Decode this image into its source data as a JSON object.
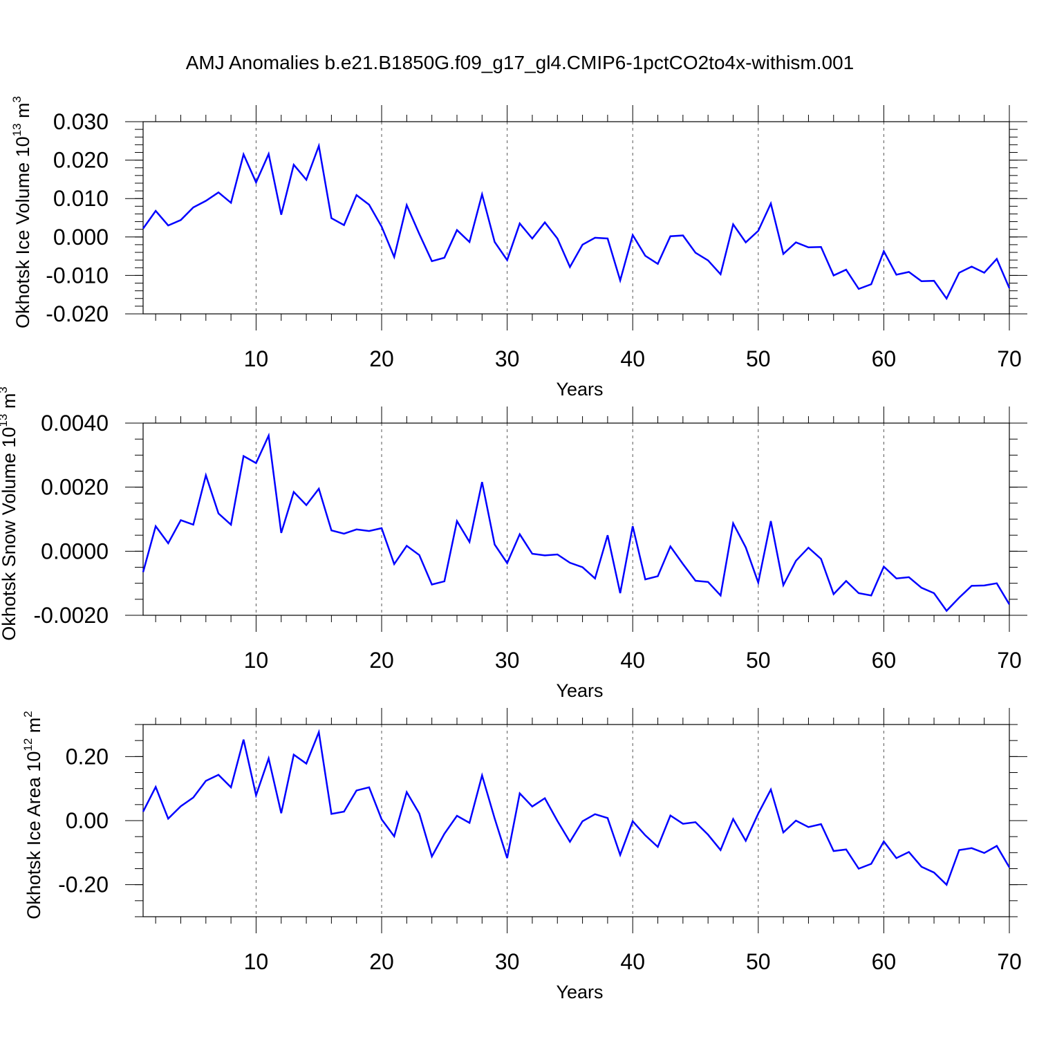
{
  "title": "AMJ Anomalies b.e21.B1850G.f09_g17_gl4.CMIP6-1pctCO2to4x-withism.001",
  "colors": {
    "series": "#0000ff",
    "axis": "#000000",
    "grid": "#555555"
  },
  "chart_data": [
    {
      "type": "line",
      "name": "Okhotsk Ice Volume",
      "ylabel": {
        "text": "Okhotsk Ice Volume 10",
        "exp": "13",
        "unit": " m",
        "unit_exp": "3"
      },
      "xlabel": "Years",
      "xlim": [
        1,
        70
      ],
      "ylim": [
        -0.02,
        0.03
      ],
      "xticks": [
        10,
        20,
        30,
        40,
        50,
        60,
        70
      ],
      "xtick_labels": [
        "10",
        "20",
        "30",
        "40",
        "50",
        "60",
        "70"
      ],
      "yticks": [
        -0.02,
        -0.01,
        0.0,
        0.01,
        0.02,
        0.03
      ],
      "ytick_labels": [
        "-0.020",
        "-0.010",
        "0.000",
        "0.010",
        "0.020",
        "0.030"
      ],
      "ymin_step": 0.002,
      "grid": "vertical dashed at x ticks",
      "x": [
        1,
        2,
        3,
        4,
        5,
        6,
        7,
        8,
        9,
        10,
        11,
        12,
        13,
        14,
        15,
        16,
        17,
        18,
        19,
        20,
        21,
        22,
        23,
        24,
        25,
        26,
        27,
        28,
        29,
        30,
        31,
        32,
        33,
        34,
        35,
        36,
        37,
        38,
        39,
        40,
        41,
        42,
        43,
        44,
        45,
        46,
        47,
        48,
        49,
        50,
        51,
        52,
        53,
        54,
        55,
        56,
        57,
        58,
        59,
        60,
        61,
        62,
        63,
        64,
        65,
        66,
        67,
        68,
        69,
        70
      ],
      "values": [
        0.0022,
        0.0068,
        0.003,
        0.0044,
        0.0077,
        0.0094,
        0.0116,
        0.0089,
        0.0215,
        0.0142,
        0.0216,
        0.0058,
        0.0188,
        0.0149,
        0.0237,
        0.0049,
        0.0031,
        0.0109,
        0.0084,
        0.0027,
        -0.0052,
        0.0083,
        0.0008,
        -0.0063,
        -0.0054,
        0.0018,
        -0.0013,
        0.0111,
        -0.0013,
        -0.006,
        0.0035,
        -0.0004,
        0.0038,
        -0.0004,
        -0.0078,
        -0.002,
        -0.0002,
        -0.0004,
        -0.0113,
        0.0005,
        -0.0049,
        -0.007,
        0.0002,
        0.0004,
        -0.0041,
        -0.0061,
        -0.0097,
        0.0033,
        -0.0014,
        0.0016,
        0.0087,
        -0.0044,
        -0.0014,
        -0.0027,
        -0.0026,
        -0.01,
        -0.0085,
        -0.0135,
        -0.0123,
        -0.0037,
        -0.0098,
        -0.0091,
        -0.0115,
        -0.0114,
        -0.016,
        -0.0093,
        -0.0077,
        -0.0093,
        -0.0057,
        -0.0133
      ]
    },
    {
      "type": "line",
      "name": "Okhotsk Snow Volume",
      "ylabel": {
        "text": "Okhotsk Snow Volume 10",
        "exp": "13",
        "unit": " m",
        "unit_exp": "3"
      },
      "xlabel": "Years",
      "xlim": [
        1,
        70
      ],
      "ylim": [
        -0.002,
        0.004
      ],
      "xticks": [
        10,
        20,
        30,
        40,
        50,
        60,
        70
      ],
      "xtick_labels": [
        "10",
        "20",
        "30",
        "40",
        "50",
        "60",
        "70"
      ],
      "yticks": [
        -0.002,
        0.0,
        0.002,
        0.004
      ],
      "ytick_labels": [
        "-0.0020",
        "0.0000",
        "0.0020",
        "0.0040"
      ],
      "ymin_step": 0.0005,
      "grid": "vertical dashed at x ticks",
      "x": [
        1,
        2,
        3,
        4,
        5,
        6,
        7,
        8,
        9,
        10,
        11,
        12,
        13,
        14,
        15,
        16,
        17,
        18,
        19,
        20,
        21,
        22,
        23,
        24,
        25,
        26,
        27,
        28,
        29,
        30,
        31,
        32,
        33,
        34,
        35,
        36,
        37,
        38,
        39,
        40,
        41,
        42,
        43,
        44,
        45,
        46,
        47,
        48,
        49,
        50,
        51,
        52,
        53,
        54,
        55,
        56,
        57,
        58,
        59,
        60,
        61,
        62,
        63,
        64,
        65,
        66,
        67,
        68,
        69,
        70
      ],
      "values": [
        -0.00065,
        0.00078,
        0.00025,
        0.00097,
        0.00083,
        0.00237,
        0.00118,
        0.00083,
        0.00297,
        0.00275,
        0.00361,
        0.00057,
        0.00185,
        0.00144,
        0.00195,
        0.00065,
        0.00055,
        0.00068,
        0.00063,
        0.00072,
        -0.0004,
        0.00017,
        -0.00012,
        -0.00104,
        -0.00094,
        0.00094,
        0.00029,
        0.00216,
        0.00021,
        -0.00037,
        0.00053,
        -8e-05,
        -0.00013,
        -0.0001,
        -0.00036,
        -0.0005,
        -0.00085,
        0.0005,
        -0.00131,
        0.00078,
        -0.00088,
        -0.00078,
        0.00015,
        -0.0004,
        -0.00092,
        -0.00096,
        -0.00138,
        0.00087,
        0.00012,
        -0.00098,
        0.00094,
        -0.00106,
        -0.0003,
        0.00011,
        -0.00024,
        -0.00134,
        -0.00093,
        -0.00131,
        -0.00138,
        -0.00048,
        -0.00085,
        -0.00081,
        -0.00114,
        -0.00131,
        -0.00186,
        -0.00145,
        -0.00108,
        -0.00107,
        -0.001,
        -0.00166
      ]
    },
    {
      "type": "line",
      "name": "Okhotsk Ice Area",
      "ylabel": {
        "text": "Okhotsk Ice Area 10",
        "exp": "12",
        "unit": " m",
        "unit_exp": "2"
      },
      "xlabel": "Years",
      "xlim": [
        1,
        70
      ],
      "ylim": [
        -0.3,
        0.3
      ],
      "xticks": [
        10,
        20,
        30,
        40,
        50,
        60,
        70
      ],
      "xtick_labels": [
        "10",
        "20",
        "30",
        "40",
        "50",
        "60",
        "70"
      ],
      "yticks": [
        -0.2,
        0.0,
        0.2
      ],
      "ytick_labels": [
        "-0.20",
        "0.00",
        "0.20"
      ],
      "ymin_step": 0.05,
      "grid": "vertical dashed at x ticks",
      "x": [
        1,
        2,
        3,
        4,
        5,
        6,
        7,
        8,
        9,
        10,
        11,
        12,
        13,
        14,
        15,
        16,
        17,
        18,
        19,
        20,
        21,
        22,
        23,
        24,
        25,
        26,
        27,
        28,
        29,
        30,
        31,
        32,
        33,
        34,
        35,
        36,
        37,
        38,
        39,
        40,
        41,
        42,
        43,
        44,
        45,
        46,
        47,
        48,
        49,
        50,
        51,
        52,
        53,
        54,
        55,
        56,
        57,
        58,
        59,
        60,
        61,
        62,
        63,
        64,
        65,
        66,
        67,
        68,
        69,
        70
      ],
      "values": [
        0.028,
        0.105,
        0.006,
        0.045,
        0.072,
        0.124,
        0.143,
        0.104,
        0.253,
        0.079,
        0.194,
        0.023,
        0.206,
        0.178,
        0.276,
        0.021,
        0.028,
        0.094,
        0.104,
        0.004,
        -0.049,
        0.089,
        0.022,
        -0.112,
        -0.041,
        0.015,
        -0.007,
        0.141,
        0.007,
        -0.117,
        0.085,
        0.044,
        0.07,
        -0.001,
        -0.066,
        -0.002,
        0.02,
        0.008,
        -0.107,
        -0.002,
        -0.046,
        -0.082,
        0.016,
        -0.01,
        -0.005,
        -0.044,
        -0.092,
        0.005,
        -0.063,
        0.022,
        0.097,
        -0.037,
        0.0,
        -0.02,
        -0.011,
        -0.095,
        -0.09,
        -0.15,
        -0.135,
        -0.065,
        -0.117,
        -0.098,
        -0.144,
        -0.162,
        -0.2,
        -0.092,
        -0.086,
        -0.101,
        -0.079,
        -0.146
      ]
    }
  ]
}
